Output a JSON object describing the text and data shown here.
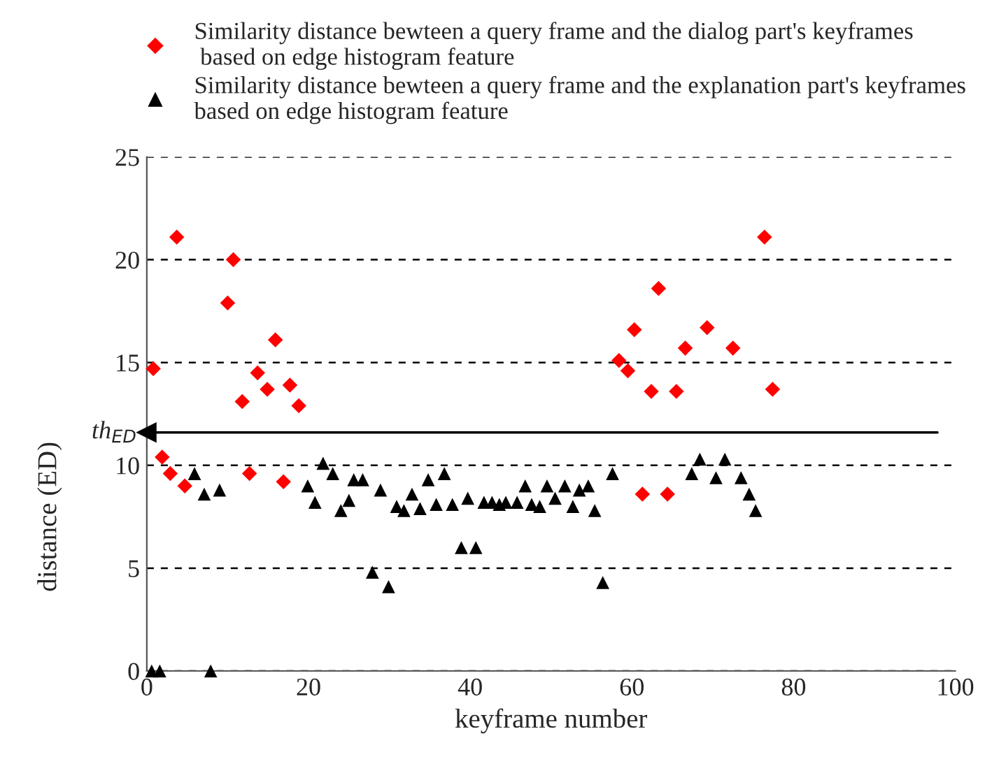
{
  "chart_data": {
    "type": "scatter",
    "xlabel": "keyframe number",
    "ylabel": "distance (ED)",
    "xlim": [
      0,
      100
    ],
    "ylim": [
      0,
      25
    ],
    "xticks": [
      0,
      20,
      40,
      60,
      80,
      100
    ],
    "yticks": [
      0,
      5,
      10,
      15,
      20,
      25
    ],
    "grid": "y",
    "legend": "top",
    "series": [
      {
        "name": "Similarity distance bewteen a query frame and the dialog part's keyframes\n based on edge histogram feature",
        "color": "#ff0000",
        "marker": "diamond",
        "x": [
          0.8,
          1.9,
          2.9,
          3.7,
          4.7,
          10.0,
          10.7,
          11.8,
          12.7,
          13.7,
          14.9,
          15.9,
          16.9,
          17.7,
          18.8,
          58.4,
          59.5,
          60.3,
          61.3,
          62.4,
          63.3,
          64.4,
          65.5,
          66.6,
          69.3,
          72.5,
          76.4,
          77.4
        ],
        "values": [
          14.7,
          10.4,
          9.6,
          21.1,
          9.0,
          17.9,
          20.0,
          13.1,
          9.6,
          14.5,
          13.7,
          16.1,
          9.2,
          13.9,
          12.9,
          15.1,
          14.6,
          16.6,
          8.6,
          13.6,
          18.6,
          8.6,
          13.6,
          15.7,
          16.7,
          15.7,
          21.1,
          13.7
        ]
      },
      {
        "name": "Similarity distance bewteen a query frame and the explanation part's keyframes\nbased on edge histogram feature",
        "color": "#000000",
        "marker": "triangle",
        "x": [
          0.6,
          1.6,
          5.9,
          7.1,
          7.9,
          9.0,
          19.9,
          20.8,
          21.8,
          23.0,
          24.0,
          25.0,
          25.6,
          26.7,
          27.9,
          28.9,
          29.9,
          30.9,
          31.8,
          32.8,
          33.8,
          34.8,
          35.8,
          36.8,
          37.8,
          38.9,
          39.7,
          40.7,
          41.7,
          42.7,
          43.6,
          44.4,
          45.8,
          46.8,
          47.6,
          48.6,
          49.5,
          50.5,
          51.7,
          52.7,
          53.5,
          54.6,
          55.4,
          56.4,
          57.6,
          67.4,
          68.4,
          70.4,
          71.5,
          73.5,
          74.5,
          75.3
        ],
        "values": [
          0,
          0,
          9.6,
          8.6,
          0,
          8.8,
          9.0,
          8.2,
          10.1,
          9.6,
          7.8,
          8.3,
          9.3,
          9.3,
          4.8,
          8.8,
          4.1,
          8.0,
          7.8,
          8.6,
          7.9,
          9.3,
          8.1,
          9.6,
          8.1,
          6.0,
          8.4,
          6.0,
          8.2,
          8.2,
          8.1,
          8.2,
          8.2,
          9.0,
          8.1,
          8.0,
          9.0,
          8.4,
          9.0,
          8.0,
          8.8,
          9.0,
          7.8,
          4.3,
          9.6,
          9.6,
          10.3,
          9.4,
          10.3,
          9.4,
          8.6,
          7.8
        ]
      }
    ],
    "ref_lines": [
      {
        "axis": "y",
        "value": 11.6,
        "label": "th$_{ED}$",
        "color": "#000000",
        "line_style": "solid"
      }
    ]
  }
}
